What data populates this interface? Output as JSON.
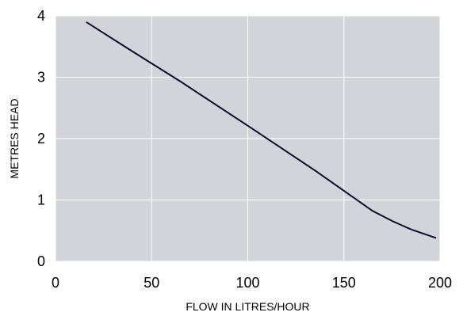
{
  "chart_data": {
    "type": "line",
    "title": "",
    "xlabel": "FLOW IN LITRES/HOUR",
    "ylabel": "METRES HEAD",
    "xlim": [
      0,
      200
    ],
    "ylim": [
      0,
      4
    ],
    "x_ticks": [
      0,
      50,
      100,
      150,
      200
    ],
    "y_ticks": [
      0,
      1,
      2,
      3,
      4
    ],
    "x_tick_labels": [
      "0",
      "50",
      "100",
      "150",
      "200"
    ],
    "y_tick_labels": [
      "0",
      "1",
      "2",
      "3",
      "4"
    ],
    "grid": true,
    "legend": "none",
    "series": [
      {
        "x": [
          16,
          40,
          65,
          100,
          135,
          160,
          165,
          175,
          185,
          198
        ],
        "y": [
          3.9,
          3.42,
          2.93,
          2.21,
          1.48,
          0.93,
          0.82,
          0.66,
          0.52,
          0.38
        ]
      }
    ],
    "colors": {
      "plot_background": "#d3d3da",
      "grid": "#ffffff",
      "line": "#0c0c2e",
      "text": "#000000"
    }
  }
}
